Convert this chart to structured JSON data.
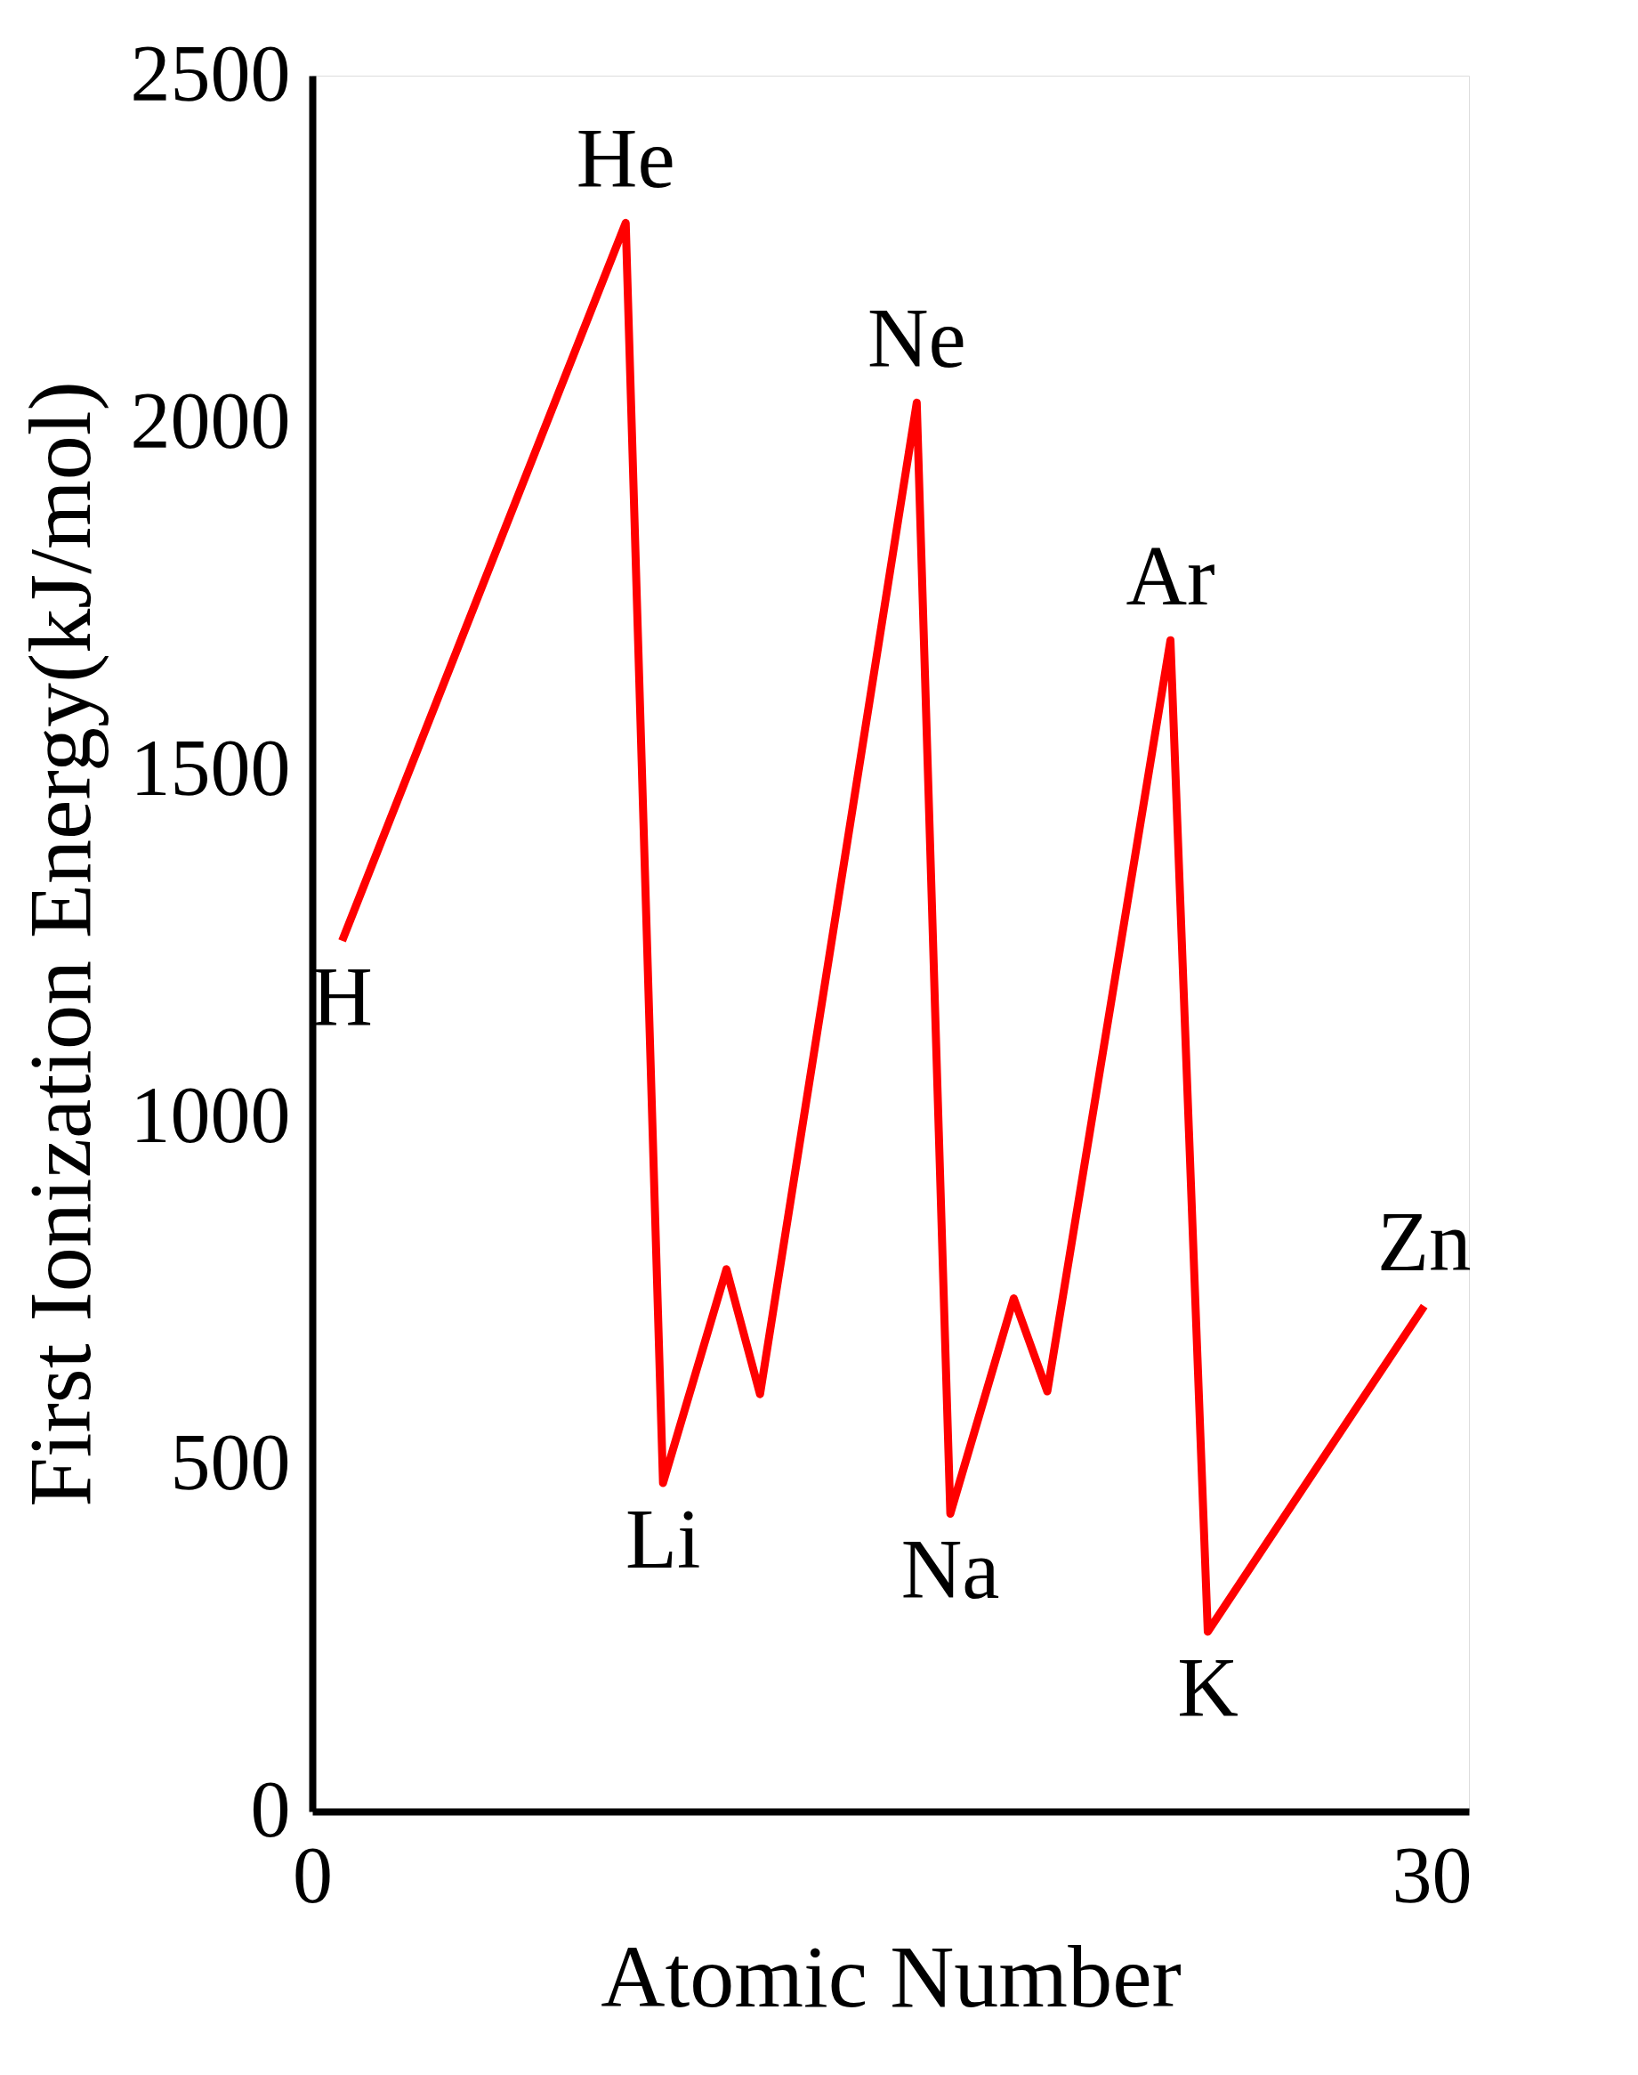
{
  "chart_data": {
    "type": "line",
    "xlabel": "Atomic Number",
    "ylabel": "First Ionization Energy(kJ/mol)",
    "x": [
      0.8,
      8.4,
      9.4,
      11.1,
      12.0,
      16.2,
      17.1,
      18.8,
      19.7,
      23.0,
      24.0,
      29.8
    ],
    "series": [
      {
        "color": "#ff0000",
        "values": [
          1254,
          2288,
          473,
          781,
          601,
          2029,
          429,
          739,
          605,
          1687,
          259,
          728
        ]
      }
    ],
    "xlim": [
      0,
      31
    ],
    "xticks": [
      0,
      30
    ],
    "ylim": [
      0,
      2500
    ],
    "yticks": [
      0,
      500,
      1000,
      1500,
      2000,
      2500
    ],
    "grid": false,
    "marker": "none",
    "line_style": "solid",
    "annotations": [
      {
        "text": "H",
        "x": 0.8,
        "y": 1254
      },
      {
        "text": "He",
        "x": 8.4,
        "y": 2288
      },
      {
        "text": "Li",
        "x": 9.4,
        "y": 473
      },
      {
        "text": "Ne",
        "x": 16.2,
        "y": 2029
      },
      {
        "text": "Na",
        "x": 17.1,
        "y": 429
      },
      {
        "text": "Ar",
        "x": 23.0,
        "y": 1687
      },
      {
        "text": "K",
        "x": 24.0,
        "y": 259
      },
      {
        "text": "Zn",
        "x": 29.8,
        "y": 728
      }
    ]
  }
}
